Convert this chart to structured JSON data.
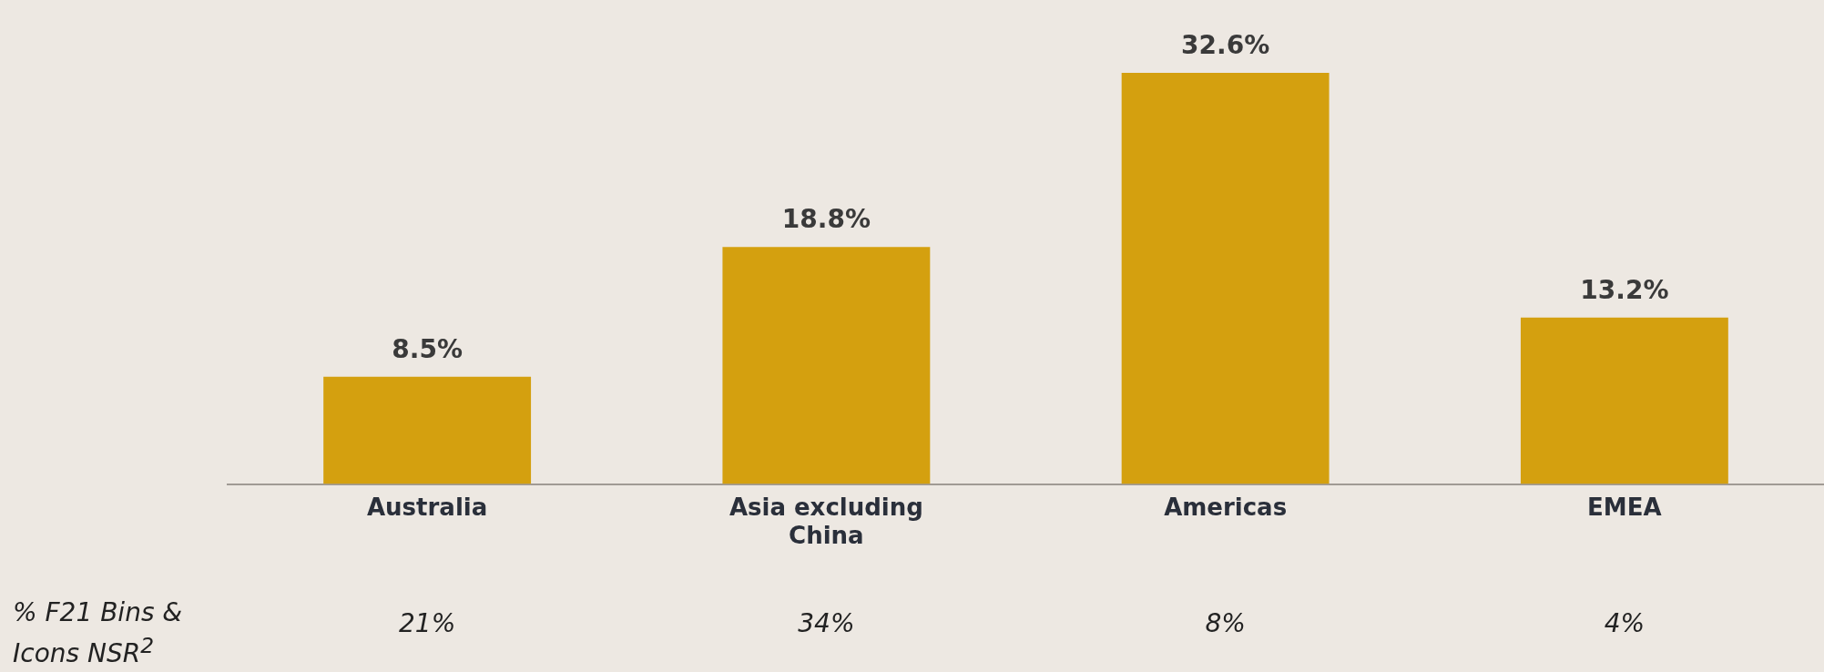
{
  "chart_data": {
    "type": "bar",
    "categories": [
      "Australia",
      "Asia excluding China",
      "Americas",
      "EMEA"
    ],
    "values": [
      8.5,
      18.8,
      32.6,
      13.2
    ],
    "color": "#d4a00f",
    "value_labels": [
      "8.5%",
      "18.8%",
      "32.6%",
      "13.2%"
    ],
    "annotations": [
      "% F21 Bins & Icons NSR$^{2}$",
      "21%",
      "34%",
      "8%",
      "4%"
    ],
    "grid": false,
    "legend": false
  }
}
